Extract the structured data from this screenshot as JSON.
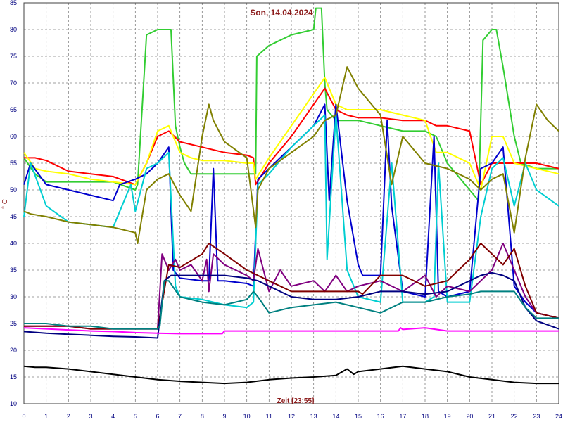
{
  "chart_data": {
    "type": "line",
    "title": "Son, 14.04.2024",
    "xlabel": "Zeit [23:55]",
    "ylabel": "° C",
    "xlim": [
      0,
      24
    ],
    "ylim": [
      10,
      85
    ],
    "xticks": [
      "0",
      "1",
      "2",
      "3",
      "4",
      "5",
      "6",
      "7",
      "8",
      "9",
      "10",
      "11",
      "12",
      "13",
      "14",
      "15",
      "16",
      "17",
      "18",
      "19",
      "20",
      "21",
      "22",
      "23",
      "24"
    ],
    "yticks": [
      "10",
      "15",
      "20",
      "25",
      "30",
      "35",
      "40",
      "45",
      "50",
      "55",
      "60",
      "65",
      "70",
      "75",
      "80",
      "85"
    ],
    "grid": true,
    "background": "#ffffff",
    "series": [
      {
        "color": "#32cd32",
        "x": [
          0,
          0.5,
          1,
          2,
          3,
          4,
          5,
          5.1,
          5.5,
          6,
          6.2,
          6.6,
          6.8,
          7,
          7.2,
          7.5,
          8,
          8.3,
          9,
          10,
          10.4,
          10.45,
          11,
          12,
          13,
          13.1,
          13.2,
          13.35,
          13.5,
          13.6,
          14,
          15,
          16,
          17,
          18,
          18.5,
          19,
          20,
          20.4,
          20.6,
          20.8,
          21,
          21.2,
          21.5,
          22,
          22.3,
          23,
          24
        ],
        "y": [
          56,
          53,
          51.5,
          51.5,
          51.5,
          51.5,
          50,
          51,
          79,
          80,
          80,
          80,
          62,
          58,
          55,
          53,
          53,
          53,
          53,
          53,
          53,
          75,
          77,
          79,
          80,
          84,
          84,
          84,
          70,
          65,
          63,
          63,
          62,
          61,
          61,
          60,
          55,
          50,
          48,
          78,
          79,
          80,
          80,
          73,
          60,
          55,
          54,
          54
        ]
      },
      {
        "color": "#ff0000",
        "x": [
          0,
          0.5,
          1,
          2,
          3,
          4,
          5,
          5.5,
          6,
          6.5,
          7,
          8,
          9,
          10,
          10.3,
          10.4,
          11,
          12,
          13,
          13.5,
          14,
          14.5,
          15,
          16,
          17,
          18,
          18.5,
          19,
          20,
          20.5,
          21,
          21.5,
          22,
          23,
          24
        ],
        "y": [
          56,
          56,
          55.5,
          53.5,
          53,
          52.5,
          51,
          55,
          60,
          61,
          59,
          58,
          57,
          56.5,
          56,
          51,
          55,
          60,
          66,
          69,
          65,
          64,
          63.5,
          63.5,
          63,
          63,
          62,
          62,
          61,
          51,
          55,
          55,
          55,
          55,
          54
        ]
      },
      {
        "color": "#ffff00",
        "x": [
          0,
          0.5,
          1,
          2,
          3,
          4,
          5,
          5.5,
          6,
          6.5,
          7,
          7.5,
          8,
          9,
          10,
          10.3,
          10.4,
          11,
          12,
          13,
          13.5,
          14,
          14.5,
          15,
          16,
          17,
          18,
          18.5,
          19,
          20,
          20.5,
          21,
          21.5,
          22,
          23,
          24
        ],
        "y": [
          57,
          54,
          53.5,
          53,
          52,
          51.5,
          51,
          55,
          61,
          62,
          57,
          56,
          55.5,
          55.5,
          55,
          55,
          52,
          56,
          62,
          68,
          71,
          66,
          65,
          65,
          65,
          64,
          63,
          57,
          57,
          55,
          50,
          60,
          60,
          55,
          54,
          53
        ]
      },
      {
        "color": "#0000cd",
        "x": [
          0,
          0.3,
          1,
          2,
          3,
          4,
          4.3,
          5,
          5.5,
          6,
          6.5,
          6.7,
          7,
          8,
          8.3,
          8.5,
          8.7,
          9,
          10,
          10.3,
          10.5,
          11,
          12,
          13,
          13.5,
          13.7,
          14,
          14.5,
          15,
          15.2,
          16,
          16.3,
          16.5,
          17,
          18,
          18.4,
          18.6,
          19,
          20,
          20.5,
          21,
          21.5,
          22,
          22.5,
          23,
          24
        ],
        "y": [
          51,
          55,
          51,
          50,
          49,
          48,
          51,
          52,
          53,
          55,
          58,
          35,
          33.5,
          33,
          33,
          54,
          33,
          33,
          32.5,
          32,
          52,
          54,
          58,
          62,
          66,
          48,
          66,
          48,
          36,
          34,
          34,
          63,
          47,
          31,
          30,
          60,
          31,
          30,
          31,
          54,
          55,
          58,
          32,
          29,
          27,
          26
        ]
      },
      {
        "color": "#00ced1",
        "x": [
          0,
          0.3,
          1,
          2,
          3,
          4,
          4.8,
          5,
          5.5,
          6,
          6.5,
          6.8,
          7,
          8,
          8.5,
          9,
          10,
          10.3,
          10.5,
          11,
          12,
          13,
          13.5,
          13.6,
          14,
          14.5,
          15,
          16,
          16.5,
          17,
          18,
          18.4,
          18.6,
          19,
          20,
          20.5,
          21,
          21.5,
          22,
          22.5,
          23,
          24
        ],
        "y": [
          45,
          55,
          47,
          44,
          43.5,
          43,
          51,
          46,
          54,
          55,
          57,
          32,
          30,
          29.5,
          29,
          28.5,
          28,
          29,
          51,
          53,
          58,
          62,
          64,
          37,
          64,
          35,
          30,
          29,
          55,
          29,
          29,
          30,
          55,
          29,
          29,
          45,
          54,
          56,
          47,
          55,
          50,
          47
        ]
      },
      {
        "color": "#808000",
        "x": [
          0,
          0.3,
          1,
          2,
          3,
          4,
          5,
          5.1,
          5.5,
          6,
          6.5,
          7,
          7.5,
          8,
          8.3,
          8.5,
          9,
          10,
          10.4,
          10.5,
          11,
          12,
          13,
          13.5,
          14,
          14.5,
          15,
          16,
          16.5,
          17,
          18,
          19,
          20,
          20.5,
          21,
          21.5,
          22,
          22.5,
          23,
          23.5,
          24
        ],
        "y": [
          46,
          45.5,
          45,
          44,
          43.5,
          43,
          42,
          40,
          50,
          52,
          53,
          49,
          46,
          60,
          66,
          63,
          59,
          56,
          43,
          50,
          54,
          57,
          60,
          63,
          64,
          73,
          69,
          64,
          51,
          60,
          55,
          54,
          52,
          50,
          52,
          53,
          42,
          56,
          66,
          63,
          61
        ]
      },
      {
        "color": "#800080",
        "x": [
          0,
          1,
          2,
          3,
          4,
          5,
          6,
          6.2,
          6.5,
          6.8,
          7,
          7.5,
          8,
          8.2,
          8.3,
          8.5,
          9,
          10,
          10.3,
          10.5,
          11,
          11.5,
          12,
          13,
          13.5,
          14,
          14.5,
          15,
          16,
          17,
          18,
          18.5,
          19,
          20,
          20.5,
          21,
          21.5,
          22,
          22.5,
          23,
          24
        ],
        "y": [
          24.5,
          24.5,
          24.5,
          24,
          24,
          24,
          24,
          38,
          35,
          37,
          35,
          36,
          33,
          37,
          31,
          38,
          36,
          34,
          33,
          39,
          31,
          35,
          32,
          33,
          31,
          34,
          31,
          32,
          33,
          31,
          34,
          30,
          32,
          31,
          33,
          35,
          40,
          35,
          30,
          27,
          26
        ]
      },
      {
        "color": "#800000",
        "x": [
          0,
          1,
          2,
          3,
          4,
          5,
          6,
          6.5,
          7,
          8,
          8.3,
          9,
          10,
          10.5,
          11,
          12,
          13,
          13.5,
          14,
          15,
          15.2,
          16,
          17,
          18,
          19,
          20,
          20.5,
          21,
          21.5,
          22,
          22.5,
          23,
          24
        ],
        "y": [
          24.5,
          24.5,
          24.5,
          24,
          24,
          24,
          24,
          36,
          35.5,
          38,
          40,
          38,
          35,
          34,
          33,
          31,
          31,
          31,
          31,
          31,
          30.5,
          34,
          34,
          32,
          33,
          37,
          40,
          38,
          36,
          39,
          32,
          27,
          26
        ]
      },
      {
        "color": "#000080",
        "x": [
          0,
          1,
          2,
          3,
          4,
          5,
          6,
          6.3,
          6.6,
          7,
          8,
          9,
          10,
          10.5,
          11,
          12,
          13,
          14,
          15,
          16,
          17,
          18,
          19,
          20,
          20.5,
          21,
          21.5,
          22,
          22.5,
          23,
          24
        ],
        "y": [
          23.5,
          23.2,
          23,
          22.8,
          22.6,
          22.5,
          22.3,
          33,
          34,
          34,
          34,
          34,
          33.5,
          33,
          32,
          30,
          29.5,
          29.5,
          30,
          31,
          31,
          30.5,
          31,
          33,
          34,
          34.5,
          34,
          33,
          28,
          25.5,
          24
        ]
      },
      {
        "color": "#008080",
        "x": [
          0,
          1,
          2,
          3,
          4,
          5,
          6,
          6.1,
          6.3,
          6.5,
          7,
          8,
          9,
          10,
          10.3,
          10.5,
          11,
          12,
          13,
          14,
          15,
          16,
          17,
          18,
          19,
          20,
          20.5,
          21,
          21.5,
          22,
          22.5,
          23,
          24
        ],
        "y": [
          25,
          25,
          24.5,
          24.5,
          24,
          24,
          24,
          24.5,
          33,
          33,
          30,
          29,
          28.5,
          29.5,
          31,
          30,
          27,
          28,
          28.5,
          29,
          28,
          27,
          29,
          29,
          30,
          30.5,
          31,
          31,
          31,
          31,
          28,
          26,
          26
        ]
      },
      {
        "color": "#ff00ff",
        "x": [
          0,
          1,
          2,
          3,
          4,
          5,
          6,
          7,
          8,
          8.9,
          9,
          10,
          11,
          12,
          13,
          14,
          15,
          16,
          16.8,
          16.9,
          17,
          18,
          19,
          20,
          21,
          22,
          23,
          24
        ],
        "y": [
          24.2,
          24,
          23.8,
          23.6,
          23.5,
          23.3,
          23.2,
          23.1,
          23.1,
          23.1,
          23.6,
          23.6,
          23.6,
          23.6,
          23.6,
          23.6,
          23.6,
          23.6,
          23.6,
          24.2,
          23.9,
          24.2,
          23.6,
          23.6,
          23.6,
          23.6,
          23.6,
          23.6
        ]
      },
      {
        "color": "#000000",
        "x": [
          0,
          0.5,
          1,
          2,
          3,
          4,
          5,
          6,
          7,
          8,
          9,
          10,
          11,
          12,
          13,
          14,
          14.5,
          14.8,
          15,
          16,
          17,
          18,
          19,
          20,
          21,
          22,
          23,
          24
        ],
        "y": [
          17,
          16.8,
          16.8,
          16.5,
          16,
          15.5,
          15,
          14.5,
          14.2,
          14,
          13.8,
          14,
          14.5,
          14.8,
          15,
          15.3,
          16.5,
          15.5,
          16,
          16.5,
          17,
          16.5,
          16,
          15,
          14.5,
          14,
          13.8,
          13.8
        ]
      }
    ]
  }
}
